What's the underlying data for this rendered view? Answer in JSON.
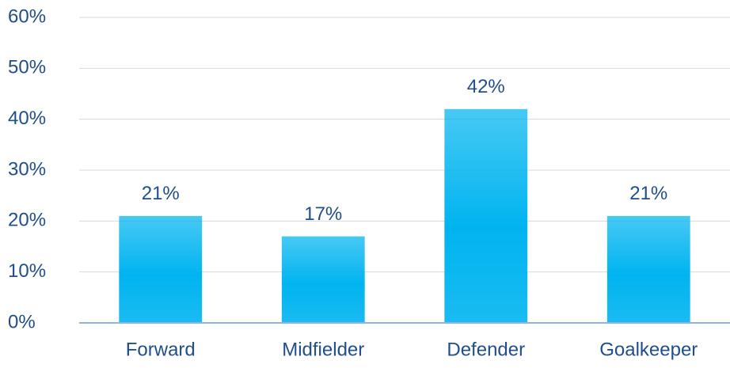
{
  "chart_data": {
    "type": "bar",
    "categories": [
      "Forward",
      "Midfielder",
      "Defender",
      "Goalkeeper"
    ],
    "values": [
      21,
      17,
      42,
      21
    ],
    "value_labels": [
      "21%",
      "17%",
      "42%",
      "21%"
    ],
    "color": "#00b4f0",
    "ylim": [
      0,
      60
    ],
    "yticks": [
      {
        "value": 0,
        "label": "0%"
      },
      {
        "value": 10,
        "label": "10%"
      },
      {
        "value": 20,
        "label": "20%"
      },
      {
        "value": 30,
        "label": "30%"
      },
      {
        "value": 40,
        "label": "40%"
      },
      {
        "value": 50,
        "label": "50%"
      },
      {
        "value": 60,
        "label": "60%"
      }
    ],
    "grid": true
  }
}
